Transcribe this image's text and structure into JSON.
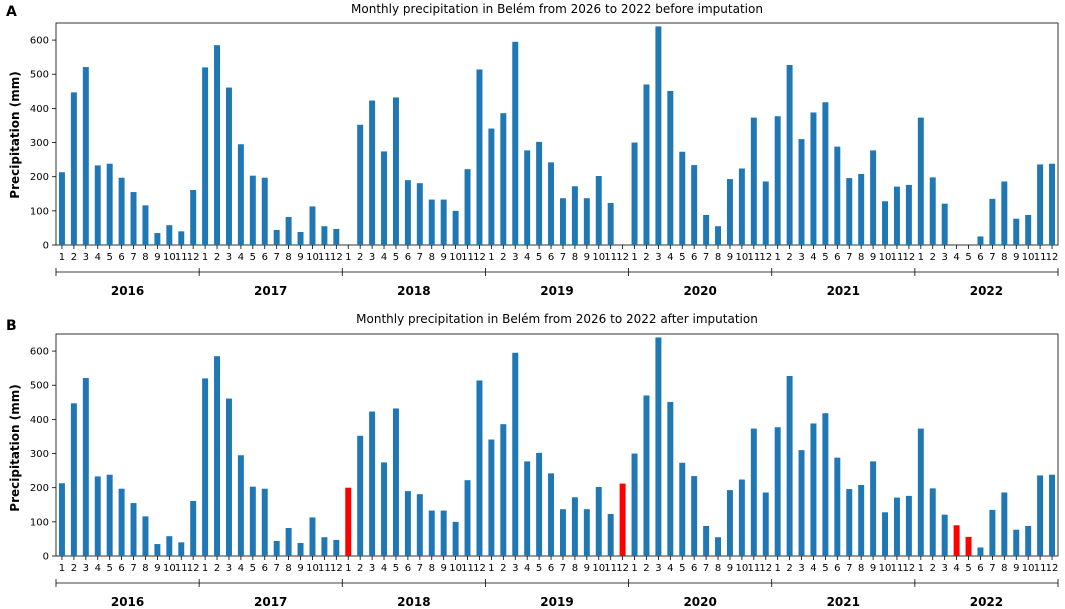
{
  "chart_data": [
    {
      "type": "bar",
      "panel_label": "A",
      "title": "Monthly precipitation in Belém from 2026 to 2022 before imputation",
      "ylabel": "Precipitation (mm)",
      "xlabel": "",
      "ylim": [
        0,
        650
      ],
      "yticks": [
        "0",
        "100",
        "200",
        "300",
        "400",
        "500",
        "600"
      ],
      "years": [
        "2016",
        "2017",
        "2018",
        "2019",
        "2020",
        "2021",
        "2022"
      ],
      "month_labels": [
        "1",
        "2",
        "3",
        "4",
        "5",
        "6",
        "7",
        "8",
        "9",
        "10",
        "11",
        "12"
      ],
      "bar_color": "#1f77b4",
      "values": [
        213,
        447,
        521,
        233,
        238,
        197,
        155,
        116,
        35,
        58,
        40,
        161,
        520,
        585,
        461,
        295,
        203,
        197,
        44,
        82,
        38,
        113,
        55,
        47,
        null,
        352,
        423,
        274,
        432,
        190,
        181,
        133,
        133,
        100,
        222,
        514,
        341,
        386,
        595,
        277,
        302,
        242,
        137,
        172,
        137,
        202,
        123,
        null,
        300,
        470,
        640,
        451,
        273,
        234,
        88,
        55,
        193,
        224,
        373,
        186,
        377,
        527,
        310,
        388,
        418,
        288,
        196,
        208,
        277,
        128,
        171,
        176,
        373,
        198,
        121,
        null,
        null,
        25,
        135,
        186,
        77,
        88,
        236,
        238
      ],
      "imputed": []
    },
    {
      "type": "bar",
      "panel_label": "B",
      "title": "Monthly precipitation in Belém from 2026 to 2022 after imputation",
      "ylabel": "Precipitation (mm)",
      "xlabel": "",
      "ylim": [
        0,
        650
      ],
      "yticks": [
        "0",
        "100",
        "200",
        "300",
        "400",
        "500",
        "600"
      ],
      "years": [
        "2016",
        "2017",
        "2018",
        "2019",
        "2020",
        "2021",
        "2022"
      ],
      "month_labels": [
        "1",
        "2",
        "3",
        "4",
        "5",
        "6",
        "7",
        "8",
        "9",
        "10",
        "11",
        "12"
      ],
      "bar_color": "#1f77b4",
      "imputed_color": "#ff0000",
      "values": [
        213,
        447,
        521,
        233,
        238,
        197,
        155,
        116,
        35,
        58,
        40,
        161,
        520,
        585,
        461,
        295,
        203,
        197,
        44,
        82,
        38,
        113,
        55,
        47,
        200,
        352,
        423,
        274,
        432,
        190,
        181,
        133,
        133,
        100,
        222,
        514,
        341,
        386,
        595,
        277,
        302,
        242,
        137,
        172,
        137,
        202,
        123,
        212,
        300,
        470,
        640,
        451,
        273,
        234,
        88,
        55,
        193,
        224,
        373,
        186,
        377,
        527,
        310,
        388,
        418,
        288,
        196,
        208,
        277,
        128,
        171,
        176,
        373,
        198,
        121,
        90,
        56,
        25,
        135,
        186,
        77,
        88,
        236,
        238
      ],
      "imputed": [
        24,
        47,
        75,
        76
      ]
    }
  ]
}
